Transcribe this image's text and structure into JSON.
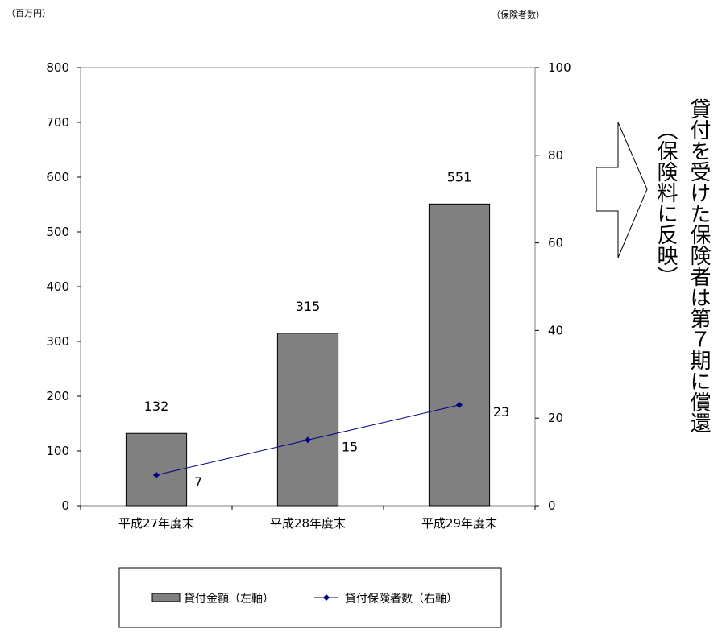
{
  "chart_data": {
    "type": "bar",
    "categories": [
      "平成27年度末",
      "平成28年度末",
      "平成29年度末"
    ],
    "series": [
      {
        "name": "貸付金額（左軸）",
        "type": "bar",
        "axis": "left",
        "values": [
          132,
          315,
          551
        ],
        "color": "#808080"
      },
      {
        "name": "貸付保険者数（右軸）",
        "type": "line",
        "axis": "right",
        "values": [
          7,
          15,
          23
        ],
        "color": "#000080"
      }
    ],
    "left_axis": {
      "unit": "（百万円）",
      "ylim": [
        0,
        800
      ],
      "ticks": [
        "0",
        "100",
        "200",
        "300",
        "400",
        "500",
        "600",
        "700",
        "800"
      ]
    },
    "right_axis": {
      "unit": "（保険者数）",
      "ylim": [
        0,
        100
      ],
      "ticks": [
        "0",
        "20",
        "40",
        "60",
        "80",
        "100"
      ]
    },
    "bar_labels": [
      "132",
      "315",
      "551"
    ],
    "line_labels": [
      "7",
      "15",
      "23"
    ],
    "grid": false,
    "legend": {
      "placement": "bottom"
    }
  },
  "annotation": {
    "arrow": "right-arrow",
    "main_text": "貸付を受けた保険者は第７期に償還",
    "sub_text": "（保険料に反映）"
  }
}
